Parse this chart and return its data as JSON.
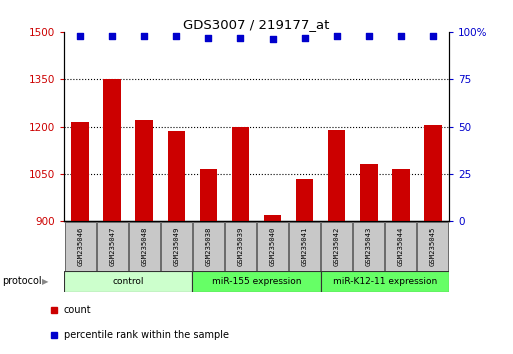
{
  "title": "GDS3007 / 219177_at",
  "samples": [
    "GSM235046",
    "GSM235047",
    "GSM235048",
    "GSM235049",
    "GSM235038",
    "GSM235039",
    "GSM235040",
    "GSM235041",
    "GSM235042",
    "GSM235043",
    "GSM235044",
    "GSM235045"
  ],
  "bar_values": [
    1215,
    1350,
    1220,
    1185,
    1065,
    1200,
    920,
    1035,
    1190,
    1080,
    1065,
    1205
  ],
  "percentile_values": [
    98,
    98,
    98,
    98,
    97,
    97,
    96,
    97,
    98,
    98,
    98,
    98
  ],
  "bar_color": "#cc0000",
  "dot_color": "#0000cc",
  "ylim_left": [
    900,
    1500
  ],
  "ylim_right": [
    0,
    100
  ],
  "yticks_left": [
    900,
    1050,
    1200,
    1350,
    1500
  ],
  "yticks_right": [
    0,
    25,
    50,
    75,
    100
  ],
  "groups": [
    {
      "label": "control",
      "start": 0,
      "end": 4,
      "color": "#ccffcc"
    },
    {
      "label": "miR-155 expression",
      "start": 4,
      "end": 8,
      "color": "#66ff66"
    },
    {
      "label": "miR-K12-11 expression",
      "start": 8,
      "end": 12,
      "color": "#66ff66"
    }
  ],
  "legend_count_label": "count",
  "legend_pct_label": "percentile rank within the sample",
  "protocol_label": "protocol",
  "bar_color_left": "#cc0000",
  "tick_color_right": "#0000cc",
  "sample_box_color": "#c8c8c8"
}
